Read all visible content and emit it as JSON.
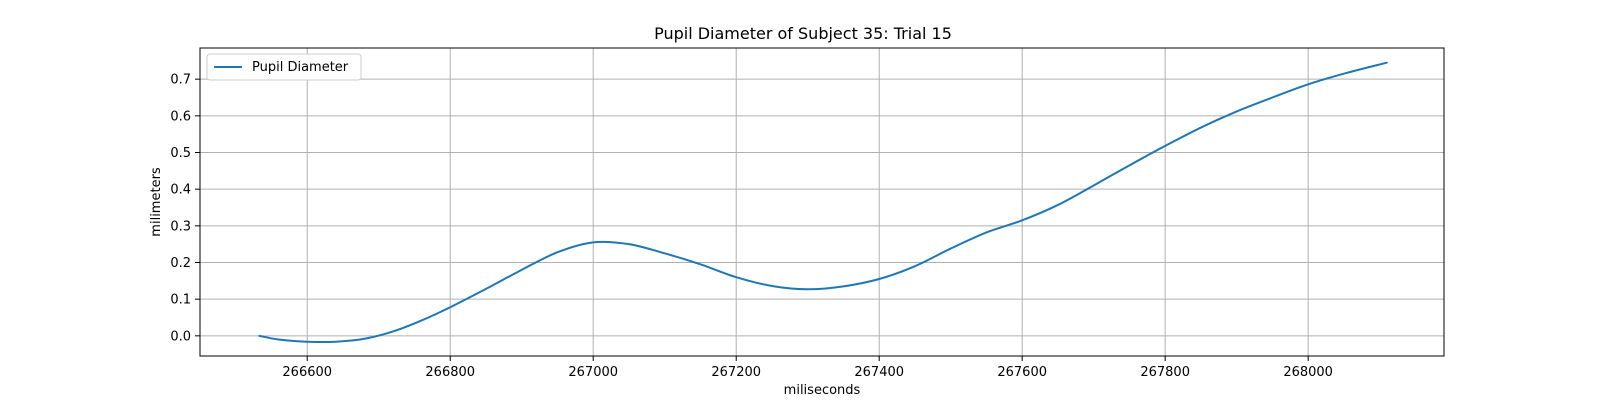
{
  "chart_data": {
    "type": "line",
    "title": "Pupil Diameter of Subject 35: Trial 15",
    "xlabel": "miliseconds",
    "ylabel": "milimeters",
    "xlim": [
      266450,
      268190
    ],
    "ylim": [
      -0.055,
      0.785
    ],
    "xticks": [
      266600,
      266800,
      267000,
      267200,
      267400,
      267600,
      267800,
      268000
    ],
    "yticks": [
      0.0,
      0.1,
      0.2,
      0.3,
      0.4,
      0.5,
      0.6,
      0.7
    ],
    "xtick_labels": [
      "266600",
      "266800",
      "267000",
      "267200",
      "267400",
      "267600",
      "267800",
      "268000"
    ],
    "ytick_labels": [
      "0.0",
      "0.1",
      "0.2",
      "0.3",
      "0.4",
      "0.5",
      "0.6",
      "0.7"
    ],
    "grid": true,
    "legend_position": "top-left",
    "series": [
      {
        "name": "Pupil Diameter",
        "color": "#1f77b4",
        "x": [
          266533,
          266560,
          266600,
          266640,
          266680,
          266720,
          266760,
          266800,
          266850,
          266900,
          266950,
          267000,
          267050,
          267100,
          267150,
          267200,
          267250,
          267300,
          267350,
          267400,
          267450,
          267500,
          267550,
          267600,
          267650,
          267700,
          267750,
          267800,
          267850,
          267900,
          267950,
          268000,
          268050,
          268110
        ],
        "y": [
          0.0,
          -0.01,
          -0.016,
          -0.016,
          -0.008,
          0.012,
          0.042,
          0.078,
          0.128,
          0.18,
          0.228,
          0.255,
          0.25,
          0.225,
          0.195,
          0.16,
          0.136,
          0.127,
          0.135,
          0.155,
          0.19,
          0.238,
          0.282,
          0.315,
          0.357,
          0.41,
          0.465,
          0.518,
          0.568,
          0.612,
          0.65,
          0.686,
          0.715,
          0.745
        ]
      }
    ]
  }
}
